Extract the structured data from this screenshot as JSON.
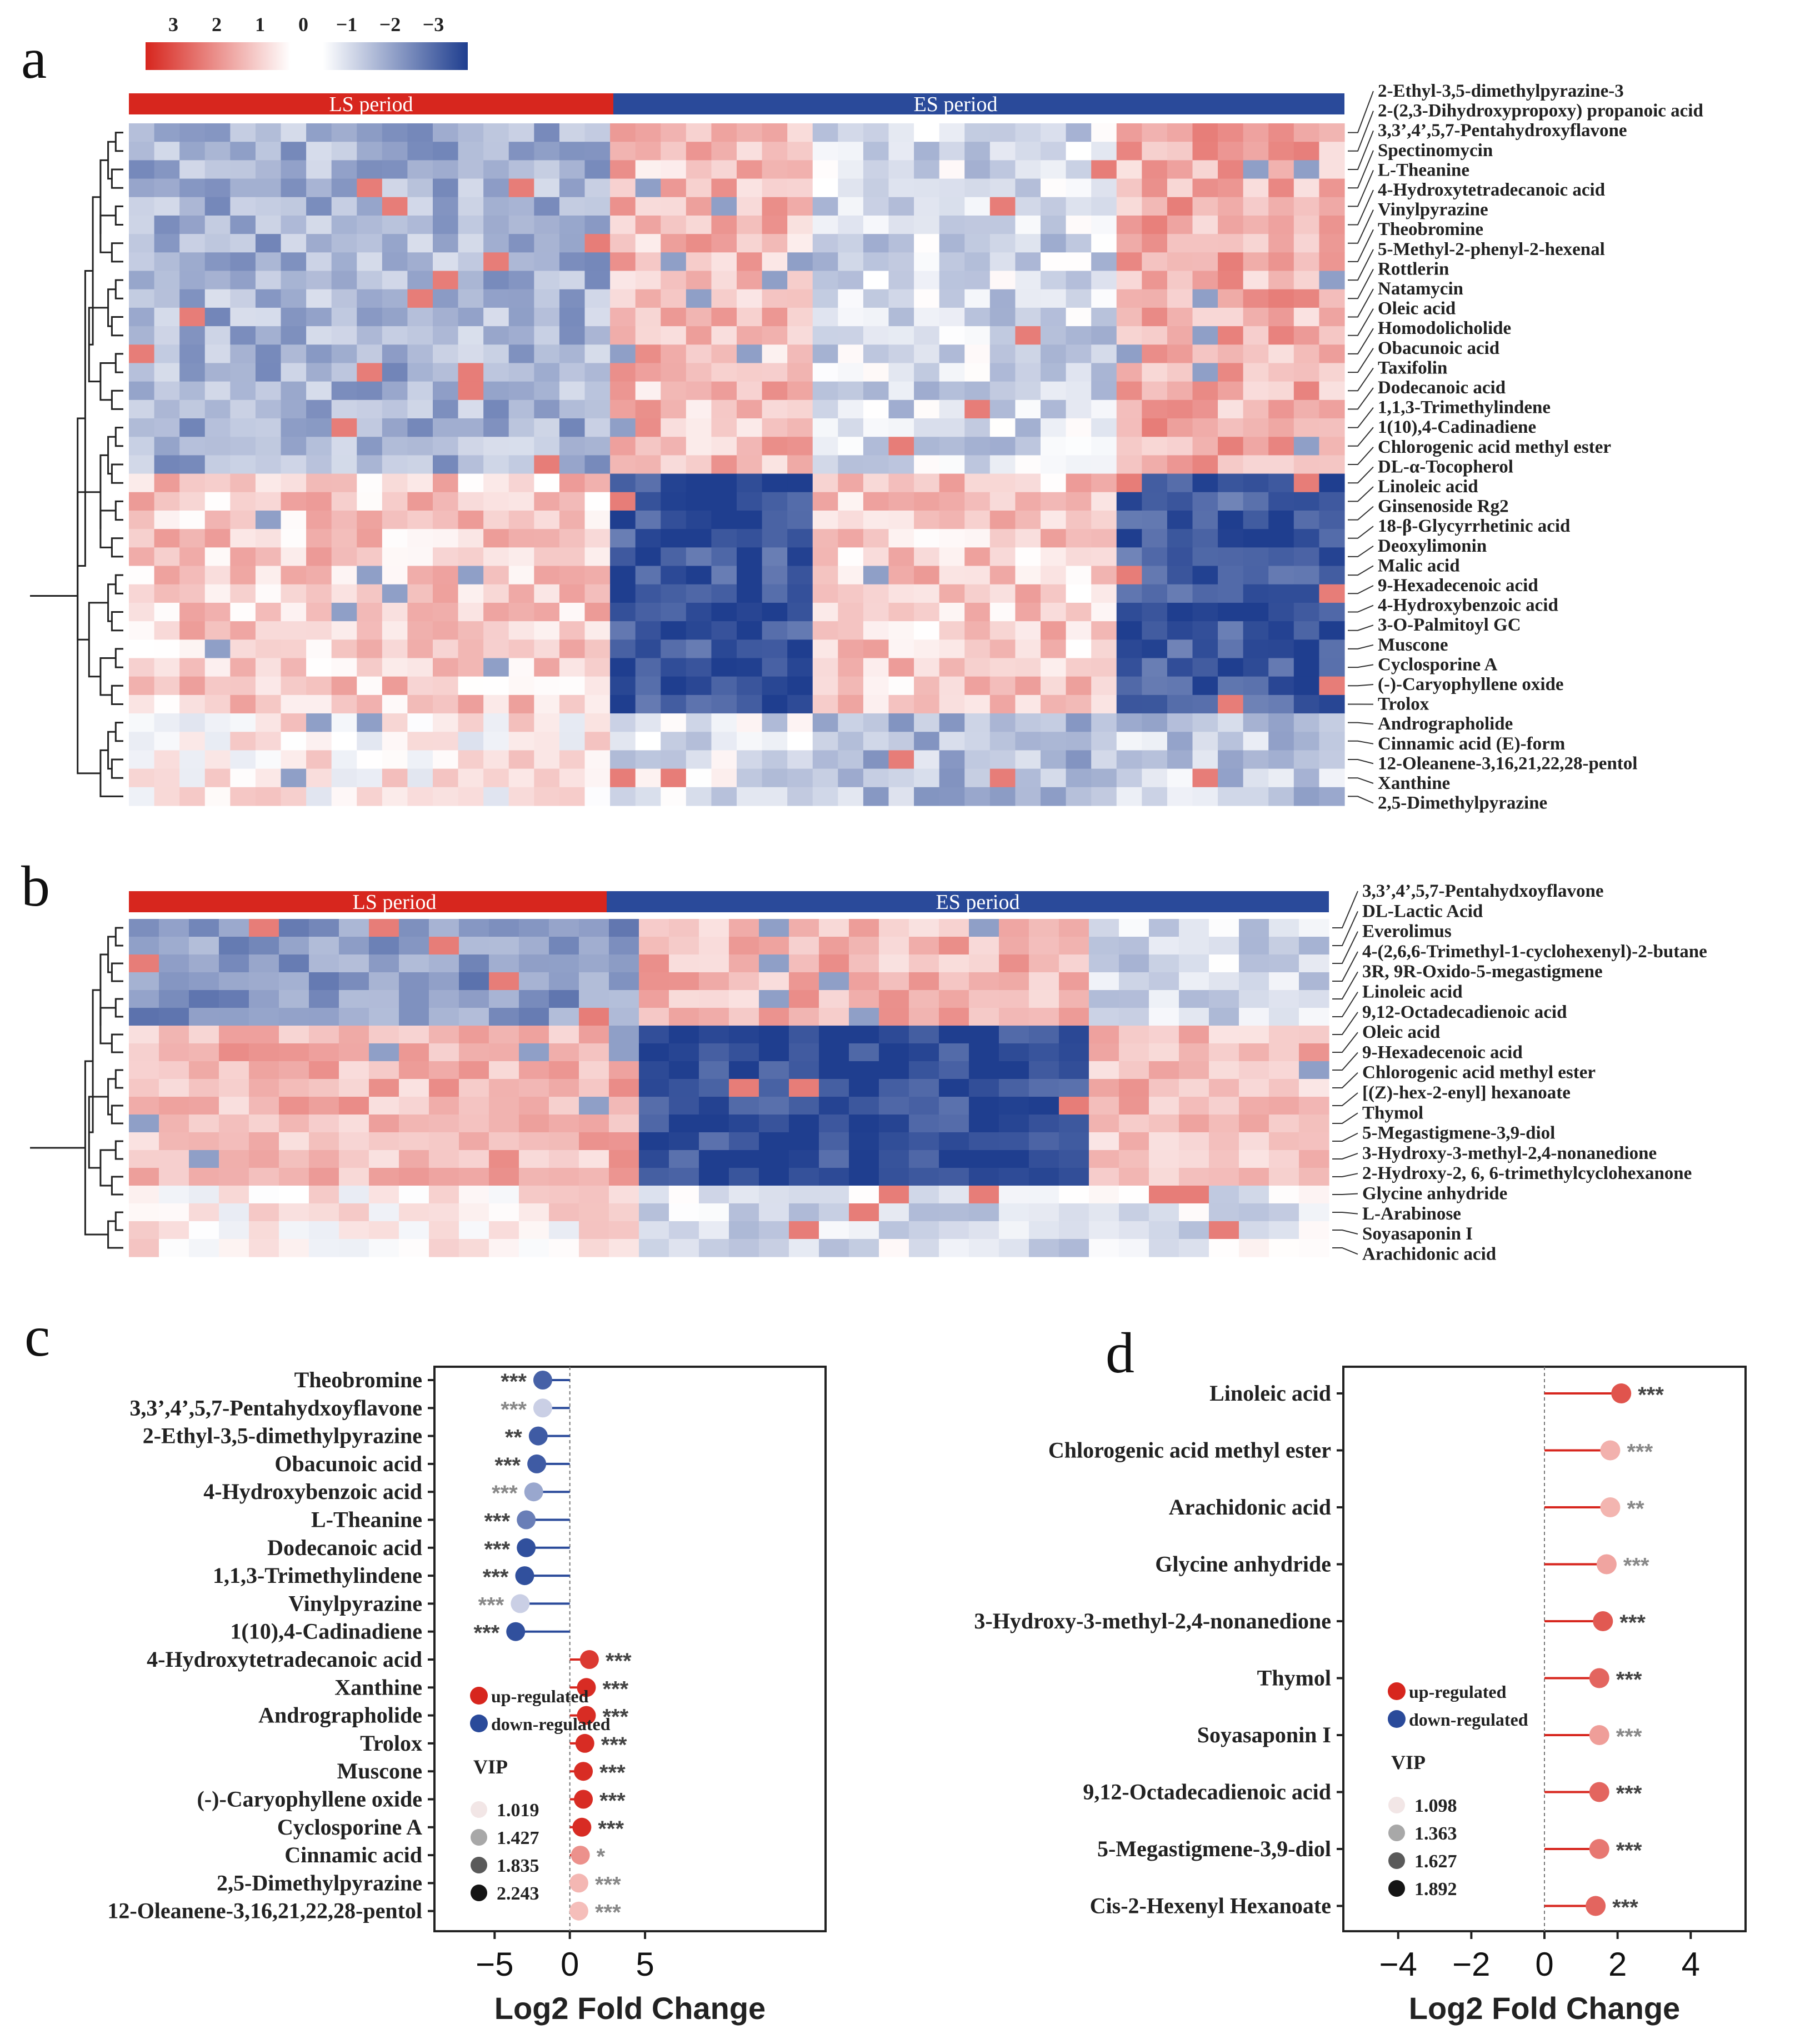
{
  "panels": {
    "a": "a",
    "b": "b",
    "c": "c",
    "d": "d"
  },
  "colorbar": {
    "ticks": [
      "3",
      "2",
      "1",
      "0",
      "−1",
      "−2",
      "−3"
    ],
    "colors": [
      "#d7261e",
      "#ffffff",
      "#1f3e8f"
    ]
  },
  "heatmap_a": {
    "groups": [
      {
        "label": "LS period",
        "color": "#d7261e"
      },
      {
        "label": "ES period",
        "color": "#2a4a9a"
      }
    ],
    "rows": [
      "2-Ethyl-3,5-dimethylpyrazine-3",
      "2-(2,3-Dihydroxypropoxy) propanoic acid",
      "3,3’,4’,5,7-Pentahydroxyflavone",
      "Spectinomycin",
      "L-Theanine",
      "4-Hydroxytetradecanoic acid",
      "Vinylpyrazine",
      "Theobromine",
      "5-Methyl-2-phenyl-2-hexenal",
      "Rottlerin",
      "Natamycin",
      "Oleic acid",
      "Homodolicholide",
      "Obacunoic acid",
      "Taxifolin",
      "Dodecanoic acid",
      "1,1,3-Trimethylindene",
      "1(10),4-Cadinadiene",
      "Chlorogenic acid methyl ester",
      "DL-α-Tocopherol",
      "Linoleic acid",
      "Ginsenoside Rg2",
      "18-β-Glycyrrhetinic acid",
      "Deoxylimonin",
      "Malic acid",
      "9-Hexadecenoic acid",
      "4-Hydroxybenzoic acid",
      "3-O-Palmitoyl GC",
      "Muscone",
      "Cyclosporine A",
      "(-)-Caryophyllene oxide",
      "Trolox",
      "Andrographolide",
      "Cinnamic acid (E)-form",
      "12-Oleanene-3,16,21,22,28-pentol",
      "Xanthine",
      "2,5-Dimethylpyrazine"
    ]
  },
  "heatmap_b": {
    "groups": [
      {
        "label": "LS period",
        "color": "#d7261e"
      },
      {
        "label": "ES period",
        "color": "#2a4a9a"
      }
    ],
    "rows": [
      "3,3’,4’,5,7-Pentahydxoyflavone",
      "DL-Lactic Acid",
      "Everolimus",
      "4-(2,6,6-Trimethyl-1-cyclohexenyl)-2-butane",
      "3R, 9R-Oxido-5-megastigmene",
      "Linoleic acid",
      "9,12-Octadecadienoic acid",
      "Oleic acid",
      "9-Hexadecenoic acid",
      "Chlorogenic acid methyl ester",
      "[(Z)-hex-2-enyl] hexanoate",
      "Thymol",
      "5-Megastigmene-3,9-diol",
      "3-Hydroxy-3-methyl-2,4-nonanedione",
      "2-Hydroxy-2, 6, 6-trimethylcyclohexanone",
      "Glycine anhydride",
      "L-Arabinose",
      "Soyasaponin I",
      "Arachidonic acid"
    ]
  },
  "chart_data": [
    {
      "panel": "c",
      "type": "lollipop",
      "xlabel": "Log2 Fold Change",
      "xlim": [
        -9,
        17
      ],
      "xticks": [
        -5,
        0,
        5
      ],
      "tick_labels": [
        "−5",
        "0",
        "5"
      ],
      "legend": {
        "up_label": "up-regulated",
        "down_label": "down-regulated",
        "vip_title": "VIP",
        "vip_values": [
          "1.019",
          "1.427",
          "1.835",
          "2.243"
        ],
        "up_color": "#d7261e",
        "down_color": "#2a4a9a"
      },
      "items": [
        {
          "name": "Theobromine",
          "value": -1.8,
          "vip": 2.05,
          "sig": "***"
        },
        {
          "name": "3,3’,4’,5,7-Pentahydxoyflavone",
          "value": -1.8,
          "vip": 1.1,
          "sig": "***"
        },
        {
          "name": "2-Ethyl-3,5-dimethylpyrazine",
          "value": -2.1,
          "vip": 2.1,
          "sig": "**"
        },
        {
          "name": "Obacunoic acid",
          "value": -2.2,
          "vip": 2.1,
          "sig": "***"
        },
        {
          "name": "4-Hydroxybenzoic acid",
          "value": -2.4,
          "vip": 1.45,
          "sig": "***"
        },
        {
          "name": "L-Theanine",
          "value": -2.9,
          "vip": 1.8,
          "sig": "***"
        },
        {
          "name": "Dodecanoic acid",
          "value": -2.9,
          "vip": 2.2,
          "sig": "***"
        },
        {
          "name": "1,1,3-Trimethylindene",
          "value": -3.0,
          "vip": 2.2,
          "sig": "***"
        },
        {
          "name": "Vinylpyrazine",
          "value": -3.3,
          "vip": 1.1,
          "sig": "***"
        },
        {
          "name": "1(10),4-Cadinadiene",
          "value": -3.6,
          "vip": 2.2,
          "sig": "***"
        },
        {
          "name": "4-Hydroxytetradecanoic acid",
          "value": 1.3,
          "vip": 2.1,
          "sig": "***"
        },
        {
          "name": "Xanthine",
          "value": 1.1,
          "vip": 2.2,
          "sig": "***"
        },
        {
          "name": "Andrographolide",
          "value": 1.1,
          "vip": 2.2,
          "sig": "***"
        },
        {
          "name": "Trolox",
          "value": 1.0,
          "vip": 2.2,
          "sig": "***"
        },
        {
          "name": "Muscone",
          "value": 0.9,
          "vip": 2.2,
          "sig": "***"
        },
        {
          "name": "(-)-Caryophyllene oxide",
          "value": 0.9,
          "vip": 2.2,
          "sig": "***"
        },
        {
          "name": "Cyclosporine A",
          "value": 0.8,
          "vip": 2.2,
          "sig": "***"
        },
        {
          "name": "Cinnamic acid",
          "value": 0.7,
          "vip": 1.4,
          "sig": "*"
        },
        {
          "name": "2,5-Dimethylpyrazine",
          "value": 0.6,
          "vip": 1.1,
          "sig": "***"
        },
        {
          "name": "12-Oleanene-3,16,21,22,28-pentol",
          "value": 0.6,
          "vip": 1.05,
          "sig": "***"
        }
      ]
    },
    {
      "panel": "d",
      "type": "lollipop",
      "xlabel": "Log2 Fold Change",
      "xlim": [
        -5.5,
        5.5
      ],
      "xticks": [
        -4,
        -2,
        0,
        2,
        4
      ],
      "tick_labels": [
        "−4",
        "−2",
        "0",
        "2",
        "4"
      ],
      "legend": {
        "up_label": "up-regulated",
        "down_label": "down-regulated",
        "vip_title": "VIP",
        "vip_values": [
          "1.098",
          "1.363",
          "1.627",
          "1.892"
        ],
        "up_color": "#d7261e",
        "down_color": "#2a4a9a"
      },
      "items": [
        {
          "name": "Linoleic acid",
          "value": 2.1,
          "vip": 1.89,
          "sig": "***"
        },
        {
          "name": "Chlorogenic acid methyl ester",
          "value": 1.8,
          "vip": 1.15,
          "sig": "***"
        },
        {
          "name": "Arachidonic acid",
          "value": 1.8,
          "vip": 1.12,
          "sig": "**"
        },
        {
          "name": "Glycine anhydride",
          "value": 1.7,
          "vip": 1.25,
          "sig": "***"
        },
        {
          "name": "3-Hydroxy-3-methyl-2,4-nonanedione",
          "value": 1.6,
          "vip": 1.85,
          "sig": "***"
        },
        {
          "name": "Thymol",
          "value": 1.5,
          "vip": 1.75,
          "sig": "***"
        },
        {
          "name": "Soyasaponin I",
          "value": 1.5,
          "vip": 1.3,
          "sig": "***"
        },
        {
          "name": "9,12-Octadecadienoic acid",
          "value": 1.5,
          "vip": 1.75,
          "sig": "***"
        },
        {
          "name": "5-Megastigmene-3,9-diol",
          "value": 1.5,
          "vip": 1.6,
          "sig": "***"
        },
        {
          "name": "Cis-2-Hexenyl Hexanoate",
          "value": 1.4,
          "vip": 1.75,
          "sig": "***"
        }
      ]
    }
  ]
}
